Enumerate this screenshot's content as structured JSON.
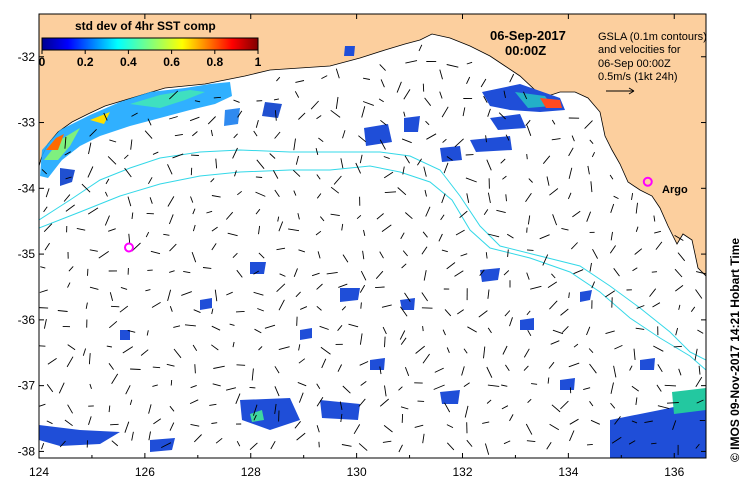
{
  "colorbar": {
    "title": "std dev of 4hr SST comp",
    "ticks": [
      "0",
      "0.2",
      "0.4",
      "0.6",
      "0.8",
      "1"
    ]
  },
  "date_label": {
    "date": "06-Sep-2017",
    "time": "00:00Z"
  },
  "info": {
    "line1": "GSLA (0.1m contours)",
    "line2": "and velocities for",
    "line3": "06-Sep 00:00Z",
    "line4": "0.5m/s (1kt 24h)"
  },
  "argo_label": "Argo",
  "copyright": "© IMOS 09-Nov-2017 14:21 Hobart Time",
  "axes": {
    "x_ticks": [
      "124",
      "126",
      "128",
      "130",
      "132",
      "134",
      "136"
    ],
    "y_ticks": [
      "-32",
      "-33",
      "-34",
      "-35",
      "-36",
      "-37",
      "-38"
    ],
    "x_range": [
      124,
      136.6
    ],
    "y_range": [
      -38.1,
      -31.35
    ]
  },
  "colors": {
    "land": "#fccf9e",
    "ocean": "#ffffff",
    "contour": "#33d8e8",
    "argo": "#ff00ff",
    "sst_low": "#1f4ed8"
  },
  "argo_floats": [
    {
      "lon": 135.5,
      "lat": -33.9
    },
    {
      "lon": 125.7,
      "lat": -34.9
    }
  ]
}
